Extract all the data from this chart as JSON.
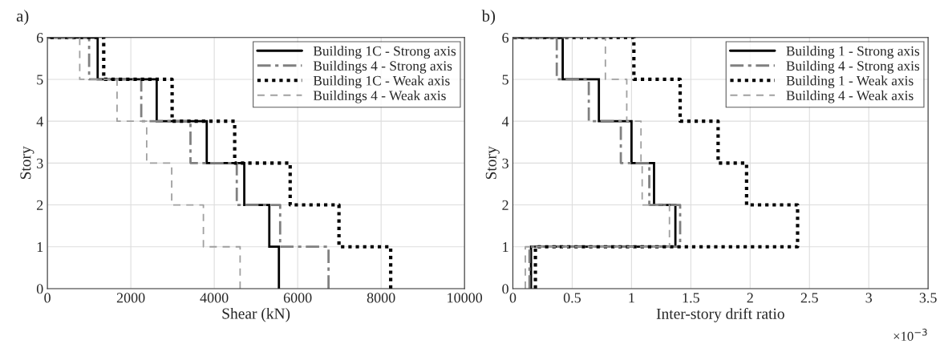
{
  "chart_data": [
    {
      "type": "line",
      "title": "a)",
      "xlabel": "Shear (kN)",
      "ylabel": "Story",
      "xlim": [
        0,
        10000
      ],
      "xticks": [
        0,
        2000,
        4000,
        6000,
        8000,
        10000
      ],
      "ylim": [
        0,
        6
      ],
      "yticks": [
        0,
        1,
        2,
        3,
        4,
        5,
        6
      ],
      "grid": true,
      "legend": "top right",
      "marker": "none",
      "series": [
        {
          "name": "Building 1C - Strong axis",
          "color": "#000000",
          "line_style": "solid",
          "x": [
            5550,
            5550,
            5320,
            5320,
            4720,
            4720,
            3820,
            3820,
            2620,
            2620,
            1205,
            1205,
            0
          ],
          "values": [
            0,
            1,
            1,
            2,
            2,
            3,
            3,
            4,
            4,
            5,
            5,
            6,
            6
          ]
        },
        {
          "name": "Buildings 4 - Strong axis",
          "color": "#808080",
          "line_style": "dashdot",
          "x": [
            6740,
            6740,
            5580,
            5580,
            4540,
            4540,
            3430,
            3430,
            2250,
            2250,
            1000,
            1000,
            0
          ],
          "values": [
            0,
            1,
            1,
            2,
            2,
            3,
            3,
            4,
            4,
            5,
            5,
            6,
            6
          ]
        },
        {
          "name": "Building 1C - Weak axis",
          "color": "#000000",
          "line_style": "dotted",
          "x": [
            8230,
            8230,
            6990,
            6990,
            5820,
            5820,
            4490,
            4490,
            2990,
            2990,
            1350,
            1350,
            0
          ],
          "values": [
            0,
            1,
            1,
            2,
            2,
            3,
            3,
            4,
            4,
            5,
            5,
            6,
            6
          ]
        },
        {
          "name": "Buildings 4 - Weak axis",
          "color": "#a0a0a0",
          "line_style": "dashed",
          "x": [
            4620,
            4620,
            3740,
            3740,
            2980,
            2980,
            2380,
            2380,
            1670,
            1670,
            775,
            775,
            0
          ],
          "values": [
            0,
            1,
            1,
            2,
            2,
            3,
            3,
            4,
            4,
            5,
            5,
            6,
            6
          ]
        }
      ]
    },
    {
      "type": "line",
      "title": "b)",
      "xlabel": "Inter-story drift ratio",
      "ylabel": "Story",
      "xlim": [
        0,
        3.5
      ],
      "xticks": [
        0,
        0.5,
        1,
        1.5,
        2,
        2.5,
        3,
        3.5
      ],
      "ylim": [
        0,
        6
      ],
      "yticks": [
        0,
        1,
        2,
        3,
        4,
        5,
        6
      ],
      "grid": true,
      "legend": "top right",
      "marker": "none",
      "annotations": [
        "×10$^{−3}$"
      ],
      "series": [
        {
          "name": "Building 1 - Strong axis",
          "color": "#000000",
          "line_style": "solid",
          "x": [
            0.153,
            0.153,
            1.37,
            1.37,
            1.19,
            1.19,
            1.0,
            1.0,
            0.725,
            0.725,
            0.42,
            0.42,
            0
          ],
          "values": [
            0,
            1,
            1,
            2,
            2,
            3,
            3,
            4,
            4,
            5,
            5,
            6,
            6
          ]
        },
        {
          "name": "Building 4 - Strong axis",
          "color": "#808080",
          "line_style": "dashdot",
          "x": [
            0.14,
            0.14,
            1.41,
            1.41,
            1.15,
            1.15,
            0.91,
            0.91,
            0.64,
            0.64,
            0.37,
            0.37,
            0
          ],
          "values": [
            0,
            1,
            1,
            2,
            2,
            3,
            3,
            4,
            4,
            5,
            5,
            6,
            6
          ]
        },
        {
          "name": "Building 1 - Weak axis",
          "color": "#000000",
          "line_style": "dotted",
          "x": [
            0.19,
            0.19,
            2.4,
            2.4,
            1.97,
            1.97,
            1.73,
            1.73,
            1.41,
            1.41,
            1.02,
            1.02,
            0
          ],
          "values": [
            0,
            1,
            1,
            2,
            2,
            3,
            3,
            4,
            4,
            5,
            5,
            6,
            6
          ]
        },
        {
          "name": "Building 4 - Weak axis",
          "color": "#a0a0a0",
          "line_style": "dashed",
          "x": [
            0.105,
            0.105,
            1.32,
            1.32,
            1.09,
            1.09,
            1.08,
            1.08,
            0.96,
            0.96,
            0.78,
            0.78,
            0
          ],
          "values": [
            0,
            1,
            1,
            2,
            2,
            3,
            3,
            4,
            4,
            5,
            5,
            6,
            6
          ]
        }
      ]
    }
  ]
}
